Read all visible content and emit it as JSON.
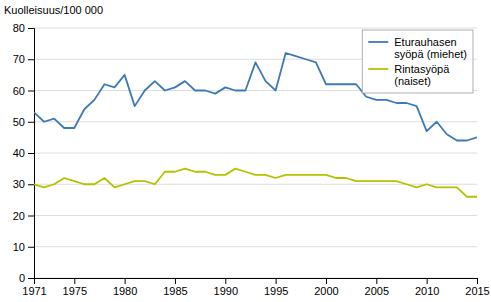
{
  "chart_data": {
    "type": "line",
    "ylabel": "Kuolleisuus/100 000",
    "x": [
      1971,
      1972,
      1973,
      1974,
      1975,
      1976,
      1977,
      1978,
      1979,
      1980,
      1981,
      1982,
      1983,
      1984,
      1985,
      1986,
      1987,
      1988,
      1989,
      1990,
      1991,
      1992,
      1993,
      1994,
      1995,
      1996,
      1997,
      1998,
      1999,
      2000,
      2001,
      2002,
      2003,
      2004,
      2005,
      2006,
      2007,
      2008,
      2009,
      2010,
      2011,
      2012,
      2013,
      2014,
      2015
    ],
    "series": [
      {
        "name": "Eturauhasen\nsyöpä (miehet)",
        "color": "#3d7ab5",
        "values": [
          53,
          50,
          51,
          48,
          48,
          54,
          57,
          62,
          61,
          65,
          55,
          60,
          63,
          60,
          61,
          63,
          60,
          60,
          59,
          61,
          60,
          60,
          69,
          63,
          60,
          72,
          71,
          70,
          69,
          62,
          62,
          62,
          62,
          58,
          57,
          57,
          56,
          56,
          55,
          47,
          50,
          46,
          44,
          44,
          45
        ]
      },
      {
        "name": "Rintasyöpä\n(naiset)",
        "color": "#b5c200",
        "values": [
          30,
          29,
          30,
          32,
          31,
          30,
          30,
          32,
          29,
          30,
          31,
          31,
          30,
          34,
          34,
          35,
          34,
          34,
          33,
          33,
          35,
          34,
          33,
          33,
          32,
          33,
          33,
          33,
          33,
          33,
          32,
          32,
          31,
          31,
          31,
          31,
          31,
          30,
          29,
          30,
          29,
          29,
          29,
          26,
          26
        ]
      }
    ],
    "xlim": [
      1971,
      2015
    ],
    "ylim": [
      0,
      80
    ],
    "xticks": [
      1971,
      1975,
      1980,
      1985,
      1990,
      1995,
      2000,
      2005,
      2010,
      2015
    ],
    "yticks": [
      0,
      10,
      20,
      30,
      40,
      50,
      60,
      70,
      80
    ],
    "grid": "y",
    "legend": "upper right"
  }
}
